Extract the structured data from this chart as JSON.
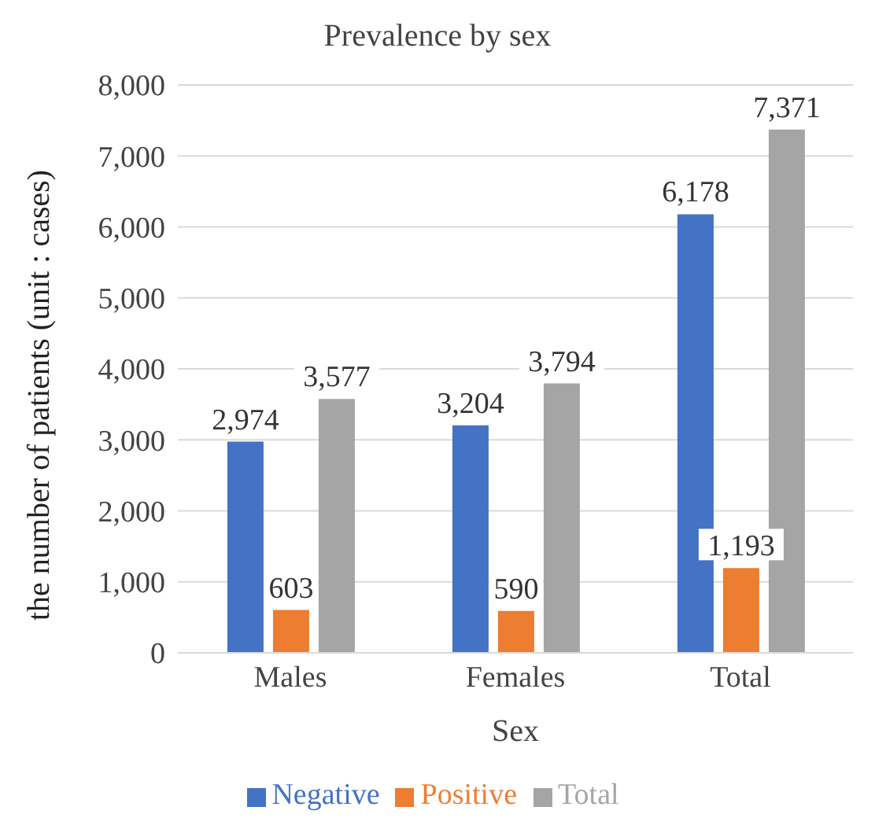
{
  "chart_data": {
    "type": "bar",
    "title": "Prevalence by sex",
    "xlabel": "Sex",
    "ylabel": "the number of patients (unit : cases)",
    "categories": [
      "Males",
      "Females",
      "Total"
    ],
    "series": [
      {
        "name": "Negative",
        "color": "#4472c4",
        "values": [
          2974,
          3204,
          6178
        ],
        "value_labels": [
          "2,974",
          "3,204",
          "6,178"
        ]
      },
      {
        "name": "Positive",
        "color": "#ed7d31",
        "values": [
          603,
          590,
          1193
        ],
        "value_labels": [
          "603",
          "590",
          "1,193"
        ]
      },
      {
        "name": "Total",
        "color": "#a5a5a5",
        "values": [
          3577,
          3794,
          7371
        ],
        "value_labels": [
          "3,577",
          "3,794",
          "7,371"
        ]
      }
    ],
    "ylim": [
      0,
      8000
    ],
    "yticks": [
      {
        "value": 0,
        "label": "0"
      },
      {
        "value": 1000,
        "label": "1,000"
      },
      {
        "value": 2000,
        "label": "2,000"
      },
      {
        "value": 3000,
        "label": "3,000"
      },
      {
        "value": 4000,
        "label": "4,000"
      },
      {
        "value": 5000,
        "label": "5,000"
      },
      {
        "value": 6000,
        "label": "6,000"
      },
      {
        "value": 7000,
        "label": "7,000"
      },
      {
        "value": 8000,
        "label": "8,000"
      }
    ],
    "grid": "y",
    "legend": "bottom"
  }
}
